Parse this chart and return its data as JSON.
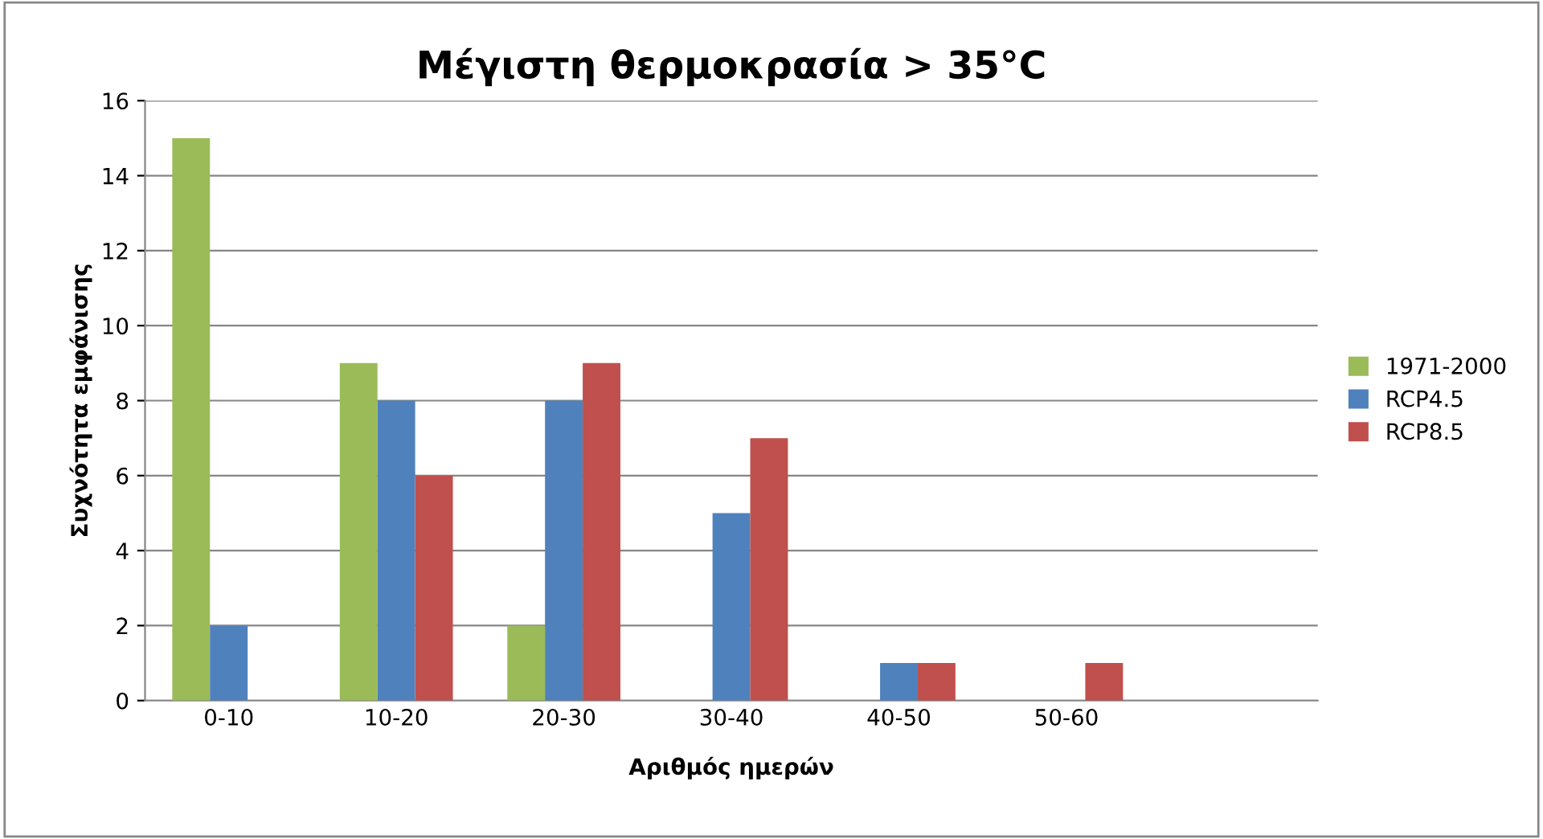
{
  "chart_data": {
    "type": "bar",
    "title": "Μέγιστη θερμοκρασία > 35°C",
    "xlabel": "Αριθμός ημερών",
    "ylabel": "Συχνότητα εμφάνισης",
    "categories": [
      "0-10",
      "10-20",
      "20-30",
      "30-40",
      "40-50",
      "50-60",
      null
    ],
    "series": [
      {
        "name": "1971-2000",
        "color": "#9bbb59",
        "values": [
          15,
          9,
          2,
          null,
          null,
          null,
          null
        ]
      },
      {
        "name": "RCP4.5",
        "color": "#4f81bd",
        "values": [
          2,
          8,
          8,
          5,
          1,
          null,
          null
        ]
      },
      {
        "name": "RCP8.5",
        "color": "#c0504d",
        "values": [
          null,
          6,
          9,
          7,
          1,
          1,
          null
        ]
      }
    ],
    "ylim": [
      0,
      16
    ],
    "yticks": [
      0,
      2,
      4,
      6,
      8,
      10,
      12,
      14,
      16
    ],
    "grid": "y",
    "legend": "right"
  }
}
